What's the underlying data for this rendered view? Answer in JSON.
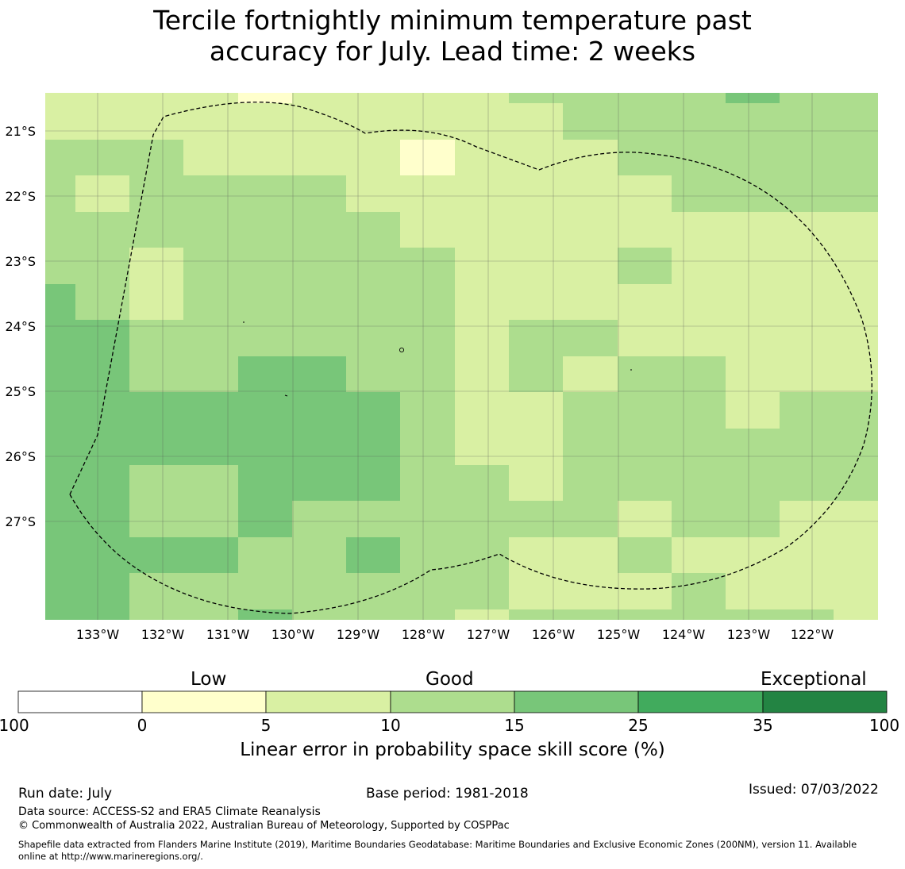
{
  "title_line1": "Tercile fortnightly minimum temperature past",
  "title_line2": "accuracy for July. Lead time: 2 weeks",
  "map": {
    "lat_labels": [
      "21°S",
      "22°S",
      "23°S",
      "24°S",
      "25°S",
      "26°S",
      "27°S"
    ],
    "lon_labels": [
      "133°W",
      "132°W",
      "131°W",
      "130°W",
      "129°W",
      "128°W",
      "127°W",
      "126°W",
      "125°W",
      "124°W",
      "123°W",
      "122°W"
    ],
    "cell_colors": {
      "light_yellow": "#ffffcc",
      "pale_yellow": "#d9f0a3",
      "light_green": "#addd8e",
      "mid_green": "#78c679",
      "green": "#41ab5d",
      "dark_green": "#238443"
    }
  },
  "colorbar": {
    "categories": [
      "Low",
      "Good",
      "Exceptional"
    ],
    "ticks": [
      "-100",
      "0",
      "5",
      "10",
      "15",
      "25",
      "35",
      "100"
    ],
    "colors": [
      "#ffffff",
      "#ffffcc",
      "#d9f0a3",
      "#addd8e",
      "#78c679",
      "#41ab5d",
      "#238443"
    ],
    "label": "Linear error in probability space skill score (%)"
  },
  "footer": {
    "run_date": "Run date: July",
    "base_period": "Base period: 1981-2018",
    "issued": "Issued: 07/03/2022",
    "data_source": "Data source: ACCESS-S2 and ERA5 Climate Reanalysis",
    "copyright": "© Commonwealth of Australia 2022, Australian Bureau of Meteorology, Supported by COSPPac",
    "shapefile_line1": "Shapefile data extracted from Flanders Marine Institute (2019), Maritime Boundaries Geodatabase: Maritime Boundaries and Exclusive Economic Zones (200NM), version 11. Available",
    "shapefile_line2": "online at http://www.marineregions.org/."
  }
}
